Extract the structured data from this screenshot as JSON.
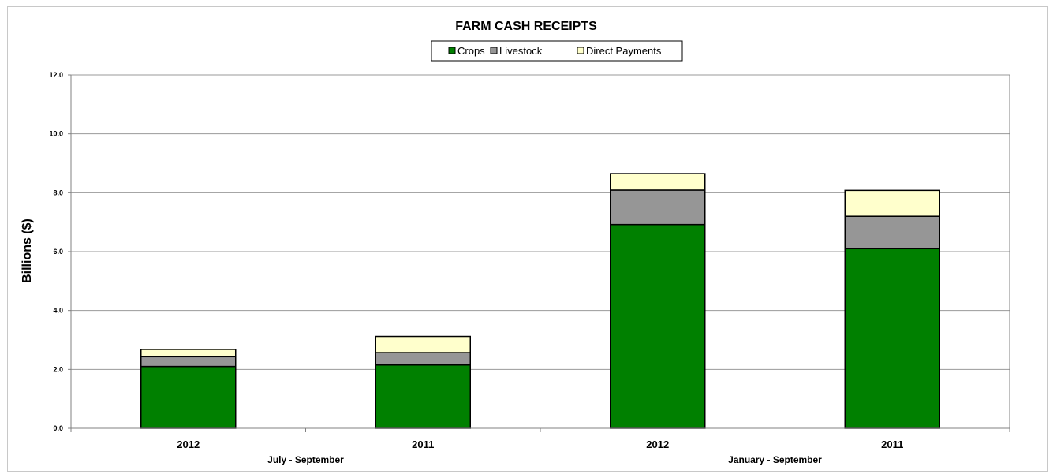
{
  "chart_data": {
    "type": "bar",
    "stacked": true,
    "title": "FARM CASH RECEIPTS",
    "ylabel": "Billions ($)",
    "xlabel": "",
    "ylim": [
      0,
      12
    ],
    "yticks": [
      "0.0",
      "2.0",
      "4.0",
      "6.0",
      "8.0",
      "10.0",
      "12.0"
    ],
    "categories": [
      "2012",
      "2011",
      "2012",
      "2011"
    ],
    "groups": [
      {
        "label": "July - September",
        "span": [
          0,
          1
        ]
      },
      {
        "label": "January - September",
        "span": [
          2,
          3
        ]
      }
    ],
    "series": [
      {
        "name": "Crops",
        "color": "#008000",
        "values": [
          2.1,
          2.15,
          6.92,
          6.1
        ]
      },
      {
        "name": "Livestock",
        "color": "#969696",
        "values": [
          0.33,
          0.42,
          1.17,
          1.1
        ]
      },
      {
        "name": "Direct Payments",
        "color": "#ffffcc",
        "values": [
          0.25,
          0.55,
          0.56,
          0.88
        ]
      }
    ],
    "grid": true,
    "legend_position": "top-center"
  }
}
